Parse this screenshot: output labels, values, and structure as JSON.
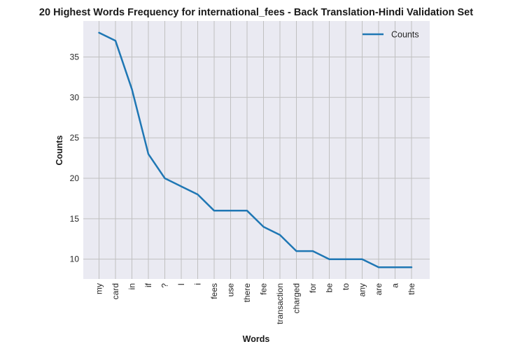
{
  "chart_data": {
    "type": "line",
    "title": "20 Highest Words Frequency for international_fees - Back Translation-Hindi Validation Set",
    "xlabel": "Words",
    "ylabel": "Counts",
    "categories": [
      "my",
      "card",
      "in",
      "if",
      "?",
      "I",
      "i",
      "fees",
      "use",
      "there",
      "fee",
      "transaction",
      "charged",
      "for",
      "be",
      "to",
      "any",
      "are",
      "a",
      "the"
    ],
    "series": [
      {
        "name": "Counts",
        "values": [
          38,
          37,
          31,
          23,
          20,
          19,
          18,
          16,
          16,
          16,
          14,
          13,
          11,
          11,
          10,
          10,
          10,
          9,
          9,
          9
        ]
      }
    ],
    "yticks": [
      10,
      15,
      20,
      25,
      30,
      35
    ],
    "ylim": [
      7.55,
      39.45
    ],
    "grid": true,
    "legend_position": "top-right",
    "colors": {
      "line": "#1f77b4",
      "plot_bg": "#eaeaf2",
      "grid": "#c0c0c0"
    }
  }
}
